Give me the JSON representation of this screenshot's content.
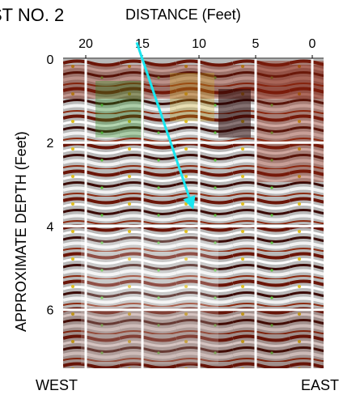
{
  "title": "ST NO. 2",
  "orientation": {
    "left": "WEST",
    "right": "EAST"
  },
  "colors": {
    "grid": "#ffffff",
    "arrow": "#19e6f0"
  },
  "chart_data": {
    "type": "heatmap",
    "title": "ST NO. 2",
    "xlabel": "DISTANCE (Feet)",
    "ylabel": "APPROXIMATE DEPTH (Feet)",
    "x_ticks": [
      20,
      15,
      10,
      5,
      0
    ],
    "y_ticks": [
      0,
      2,
      4,
      6
    ],
    "xlim": [
      22,
      -1
    ],
    "ylim": [
      0,
      7.4
    ],
    "grid": true,
    "annotation": {
      "type": "arrow",
      "from": [
        15.5,
        -0.4
      ],
      "to": [
        10.5,
        3.6
      ]
    }
  }
}
